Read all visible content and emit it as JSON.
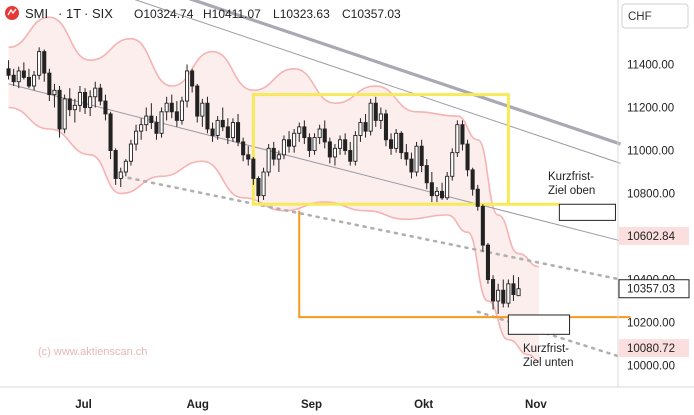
{
  "header": {
    "symbol": "SMI",
    "interval": "1T",
    "exchange": "SIX",
    "sep": "·",
    "ohlc": [
      {
        "k": "O",
        "v": "10324.74"
      },
      {
        "k": "H",
        "v": "10411.07"
      },
      {
        "k": "L",
        "v": "10323.63"
      },
      {
        "k": "C",
        "v": "10357.03"
      }
    ]
  },
  "currency_button": "CHF",
  "watermark": "(c) www.aktienscan.ch",
  "annotations": {
    "target_high_line1": "Kurzfrist-",
    "target_high_line2": "Ziel oben",
    "target_low_line1": "Kurzfrist-",
    "target_low_line2": "Ziel unten"
  },
  "badges": [
    {
      "value": 10602.84,
      "label": "10602.84",
      "style": "pink"
    },
    {
      "value": 10357.03,
      "label": "10357.03",
      "style": "white"
    },
    {
      "value": 10080.72,
      "label": "10080.72",
      "style": "pink"
    }
  ],
  "colors": {
    "up": "#ffffff",
    "down": "#222222",
    "wick": "#222222",
    "band_line": "#f5b3b3",
    "band_fill": "#fdeeee",
    "upper_trend": "#a9a9b4",
    "channel_line": "#9a9aa4",
    "dotted_line": "#b0b0b0",
    "yellow_box": "#f7ea5a",
    "orange": "#f59a1c",
    "pink_badge": "#fbdede"
  },
  "chart_data": {
    "type": "candlestick",
    "x_ticks": [
      "Jul",
      "Aug",
      "Sep",
      "Okt",
      "Nov"
    ],
    "y_ticks": [
      10000,
      10200,
      10400,
      10600,
      10800,
      11000,
      11200,
      11400
    ],
    "ylim": [
      9900,
      11700
    ],
    "bars": 120,
    "candles": [
      [
        11380,
        11420,
        11330,
        11350
      ],
      [
        11350,
        11380,
        11300,
        11320
      ],
      [
        11320,
        11390,
        11290,
        11370
      ],
      [
        11370,
        11410,
        11330,
        11340
      ],
      [
        11340,
        11380,
        11290,
        11300
      ],
      [
        11300,
        11370,
        11280,
        11350
      ],
      [
        11350,
        11480,
        11330,
        11460
      ],
      [
        11460,
        11470,
        11320,
        11360
      ],
      [
        11360,
        11380,
        11230,
        11260
      ],
      [
        11260,
        11310,
        11200,
        11280
      ],
      [
        11280,
        11300,
        11060,
        11100
      ],
      [
        11100,
        11260,
        11080,
        11240
      ],
      [
        11240,
        11290,
        11160,
        11190
      ],
      [
        11190,
        11240,
        11130,
        11210
      ],
      [
        11210,
        11300,
        11180,
        11270
      ],
      [
        11270,
        11290,
        11170,
        11200
      ],
      [
        11200,
        11280,
        11160,
        11250
      ],
      [
        11250,
        11320,
        11200,
        11290
      ],
      [
        11290,
        11310,
        11210,
        11230
      ],
      [
        11230,
        11260,
        11140,
        11170
      ],
      [
        11170,
        11180,
        10960,
        11000
      ],
      [
        11000,
        11010,
        10840,
        10870
      ],
      [
        10870,
        10920,
        10830,
        10900
      ],
      [
        10900,
        10960,
        10880,
        10950
      ],
      [
        10950,
        11050,
        10930,
        11030
      ],
      [
        11030,
        11120,
        11000,
        11090
      ],
      [
        11090,
        11150,
        11050,
        11120
      ],
      [
        11120,
        11200,
        11090,
        11160
      ],
      [
        11160,
        11220,
        11100,
        11130
      ],
      [
        11130,
        11160,
        11050,
        11080
      ],
      [
        11080,
        11200,
        11060,
        11180
      ],
      [
        11180,
        11250,
        11140,
        11220
      ],
      [
        11220,
        11260,
        11150,
        11180
      ],
      [
        11180,
        11230,
        11110,
        11140
      ],
      [
        11140,
        11250,
        11120,
        11230
      ],
      [
        11230,
        11400,
        11200,
        11370
      ],
      [
        11370,
        11380,
        11270,
        11300
      ],
      [
        11300,
        11310,
        11130,
        11160
      ],
      [
        11160,
        11240,
        11110,
        11220
      ],
      [
        11220,
        11250,
        11080,
        11100
      ],
      [
        11100,
        11130,
        11040,
        11070
      ],
      [
        11070,
        11160,
        11050,
        11140
      ],
      [
        11140,
        11200,
        11090,
        11110
      ],
      [
        11110,
        11150,
        11030,
        11060
      ],
      [
        11060,
        11150,
        11040,
        11130
      ],
      [
        11130,
        11170,
        11020,
        11040
      ],
      [
        11040,
        11060,
        10950,
        10980
      ],
      [
        10980,
        11020,
        10930,
        10960
      ],
      [
        10960,
        10970,
        10840,
        10870
      ],
      [
        10870,
        10880,
        10760,
        10790
      ],
      [
        10790,
        10920,
        10770,
        10900
      ],
      [
        10900,
        11030,
        10880,
        11010
      ],
      [
        11010,
        11040,
        10930,
        10960
      ],
      [
        10960,
        11000,
        10900,
        10980
      ],
      [
        10980,
        11070,
        10960,
        11050
      ],
      [
        11050,
        11090,
        10990,
        11020
      ],
      [
        11020,
        11100,
        10990,
        11080
      ],
      [
        11080,
        11130,
        11040,
        11110
      ],
      [
        11110,
        11140,
        11030,
        11060
      ],
      [
        11060,
        11080,
        10970,
        11000
      ],
      [
        11000,
        11080,
        10980,
        11060
      ],
      [
        11060,
        11120,
        11030,
        11100
      ],
      [
        11100,
        11140,
        11010,
        11040
      ],
      [
        11040,
        11060,
        10940,
        10970
      ],
      [
        10970,
        11030,
        10930,
        11010
      ],
      [
        11010,
        11070,
        10980,
        11050
      ],
      [
        11050,
        11080,
        10980,
        11000
      ],
      [
        11000,
        11040,
        10930,
        10950
      ],
      [
        10950,
        11090,
        10930,
        11070
      ],
      [
        11070,
        11150,
        11040,
        11130
      ],
      [
        11130,
        11170,
        11060,
        11090
      ],
      [
        11090,
        11240,
        11070,
        11220
      ],
      [
        11220,
        11250,
        11110,
        11140
      ],
      [
        11140,
        11200,
        11100,
        11170
      ],
      [
        11170,
        11190,
        11020,
        11050
      ],
      [
        11050,
        11080,
        10980,
        11010
      ],
      [
        11010,
        11100,
        10990,
        11080
      ],
      [
        11080,
        11090,
        10960,
        10990
      ],
      [
        10990,
        11030,
        10930,
        10960
      ],
      [
        10960,
        10990,
        10870,
        10900
      ],
      [
        10900,
        11040,
        10880,
        11020
      ],
      [
        11020,
        11050,
        10900,
        10930
      ],
      [
        10930,
        10960,
        10820,
        10850
      ],
      [
        10850,
        10900,
        10760,
        10790
      ],
      [
        10790,
        10830,
        10760,
        10810
      ],
      [
        10810,
        10850,
        10770,
        10780
      ],
      [
        10780,
        10900,
        10770,
        10880
      ],
      [
        10880,
        11010,
        10860,
        10990
      ],
      [
        10990,
        11140,
        10970,
        11120
      ],
      [
        11120,
        11140,
        11000,
        11030
      ],
      [
        11030,
        11050,
        10880,
        10910
      ],
      [
        10910,
        10920,
        10790,
        10820
      ],
      [
        10820,
        10840,
        10720,
        10740
      ],
      [
        10740,
        10750,
        10530,
        10560
      ],
      [
        10560,
        10570,
        10380,
        10400
      ],
      [
        10400,
        10420,
        10260,
        10300
      ],
      [
        10300,
        10380,
        10240,
        10350
      ],
      [
        10350,
        10400,
        10270,
        10290
      ],
      [
        10290,
        10400,
        10270,
        10380
      ],
      [
        10380,
        10420,
        10300,
        10330
      ],
      [
        10324.74,
        10411.07,
        10323.63,
        10357.03
      ]
    ],
    "series": [
      {
        "type": "line",
        "style": "solid-thick",
        "points": [
          [
            0,
            11990
          ],
          [
            120,
            11030
          ]
        ]
      },
      {
        "type": "line",
        "style": "solid-thin",
        "points": [
          [
            0,
            11900
          ],
          [
            120,
            10940
          ]
        ]
      },
      {
        "type": "line",
        "style": "solid-thin",
        "points": [
          [
            0,
            11310
          ],
          [
            120,
            10580
          ]
        ]
      },
      {
        "type": "line",
        "style": "dotted",
        "points": [
          [
            22,
            10880
          ],
          [
            120,
            10400
          ]
        ]
      },
      {
        "type": "line",
        "style": "dotted",
        "points": [
          [
            92,
            10250
          ],
          [
            120,
            10040
          ]
        ]
      }
    ],
    "band_upper": [
      [
        0,
        11480
      ],
      [
        8,
        11620
      ],
      [
        16,
        11420
      ],
      [
        24,
        11520
      ],
      [
        32,
        11300
      ],
      [
        40,
        11460
      ],
      [
        48,
        11280
      ],
      [
        56,
        11380
      ],
      [
        64,
        11220
      ],
      [
        72,
        11300
      ],
      [
        80,
        11180
      ],
      [
        88,
        11160
      ],
      [
        92,
        11050
      ],
      [
        96,
        10700
      ],
      [
        100,
        10520
      ],
      [
        104,
        10460
      ]
    ],
    "band_lower": [
      [
        0,
        11200
      ],
      [
        8,
        11100
      ],
      [
        16,
        10980
      ],
      [
        22,
        10800
      ],
      [
        30,
        10880
      ],
      [
        38,
        10950
      ],
      [
        46,
        10780
      ],
      [
        54,
        10720
      ],
      [
        62,
        10760
      ],
      [
        70,
        10720
      ],
      [
        78,
        10680
      ],
      [
        86,
        10700
      ],
      [
        90,
        10620
      ],
      [
        94,
        10300
      ],
      [
        98,
        10120
      ],
      [
        102,
        10050
      ],
      [
        104,
        10020
      ]
    ],
    "yellow_box": {
      "x0": 48,
      "x1": 98,
      "y_top": 11260,
      "y_bottom": 10750
    },
    "yellow_extend": {
      "x0": 98,
      "x1": 108,
      "y": 10750
    },
    "orange_line": {
      "x0": 57,
      "y_from": 10720,
      "y": 10225,
      "x1": 120
    },
    "target_high": {
      "x0": 108,
      "x1": 119,
      "y0": 10675,
      "y1": 10750
    },
    "target_low": {
      "x0": 98,
      "x1": 110,
      "y0": 10145,
      "y1": 10235
    }
  }
}
